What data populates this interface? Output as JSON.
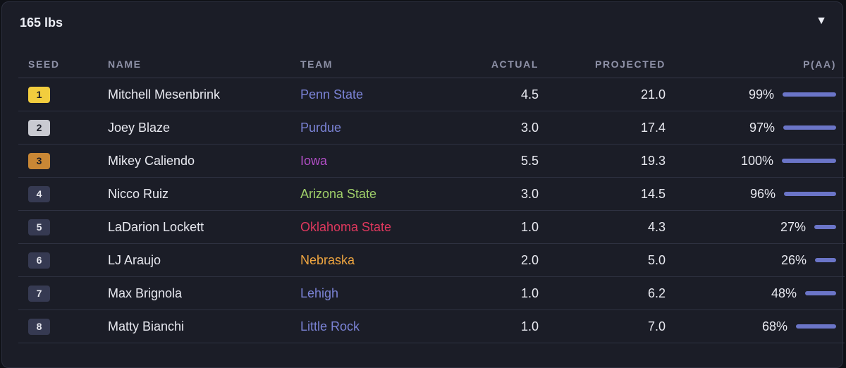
{
  "panel": {
    "title": "165 lbs",
    "toggle_icon": "chevron-down-icon"
  },
  "columns": {
    "seed": "SEED",
    "name": "NAME",
    "team": "TEAM",
    "actual": "ACTUAL",
    "projected": "PROJECTED",
    "paa": "P(AA)"
  },
  "rows": [
    {
      "seed": "1",
      "seed_bg": "#f2cd3e",
      "seed_fg": "#1b1d27",
      "name": "Mitchell Mesenbrink",
      "team": "Penn State",
      "team_color": "#7b83d6",
      "actual": "4.5",
      "projected": "21.0",
      "paa": "99%",
      "paa_value": 0.99
    },
    {
      "seed": "2",
      "seed_bg": "#c9cad1",
      "seed_fg": "#1b1d27",
      "name": "Joey Blaze",
      "team": "Purdue",
      "team_color": "#7b83d6",
      "actual": "3.0",
      "projected": "17.4",
      "paa": "97%",
      "paa_value": 0.97
    },
    {
      "seed": "3",
      "seed_bg": "#c98735",
      "seed_fg": "#1b1d27",
      "name": "Mikey Caliendo",
      "team": "Iowa",
      "team_color": "#b04ec4",
      "actual": "5.5",
      "projected": "19.3",
      "paa": "100%",
      "paa_value": 1.0
    },
    {
      "seed": "4",
      "seed_bg": "#363a52",
      "seed_fg": "#e6e7ee",
      "name": "Nicco Ruiz",
      "team": "Arizona State",
      "team_color": "#9fcf69",
      "actual": "3.0",
      "projected": "14.5",
      "paa": "96%",
      "paa_value": 0.96
    },
    {
      "seed": "5",
      "seed_bg": "#363a52",
      "seed_fg": "#e6e7ee",
      "name": "LaDarion Lockett",
      "team": "Oklahoma State",
      "team_color": "#e0385e",
      "actual": "1.0",
      "projected": "4.3",
      "paa": "27%",
      "paa_value": 0.27
    },
    {
      "seed": "6",
      "seed_bg": "#363a52",
      "seed_fg": "#e6e7ee",
      "name": "LJ Araujo",
      "team": "Nebraska",
      "team_color": "#f0a640",
      "actual": "2.0",
      "projected": "5.0",
      "paa": "26%",
      "paa_value": 0.26
    },
    {
      "seed": "7",
      "seed_bg": "#363a52",
      "seed_fg": "#e6e7ee",
      "name": "Max Brignola",
      "team": "Lehigh",
      "team_color": "#7b83d6",
      "actual": "1.0",
      "projected": "6.2",
      "paa": "48%",
      "paa_value": 0.48
    },
    {
      "seed": "8",
      "seed_bg": "#363a52",
      "seed_fg": "#e6e7ee",
      "name": "Matty Bianchi",
      "team": "Little Rock",
      "team_color": "#7b83d6",
      "actual": "1.0",
      "projected": "7.0",
      "paa": "68%",
      "paa_value": 0.68
    }
  ]
}
